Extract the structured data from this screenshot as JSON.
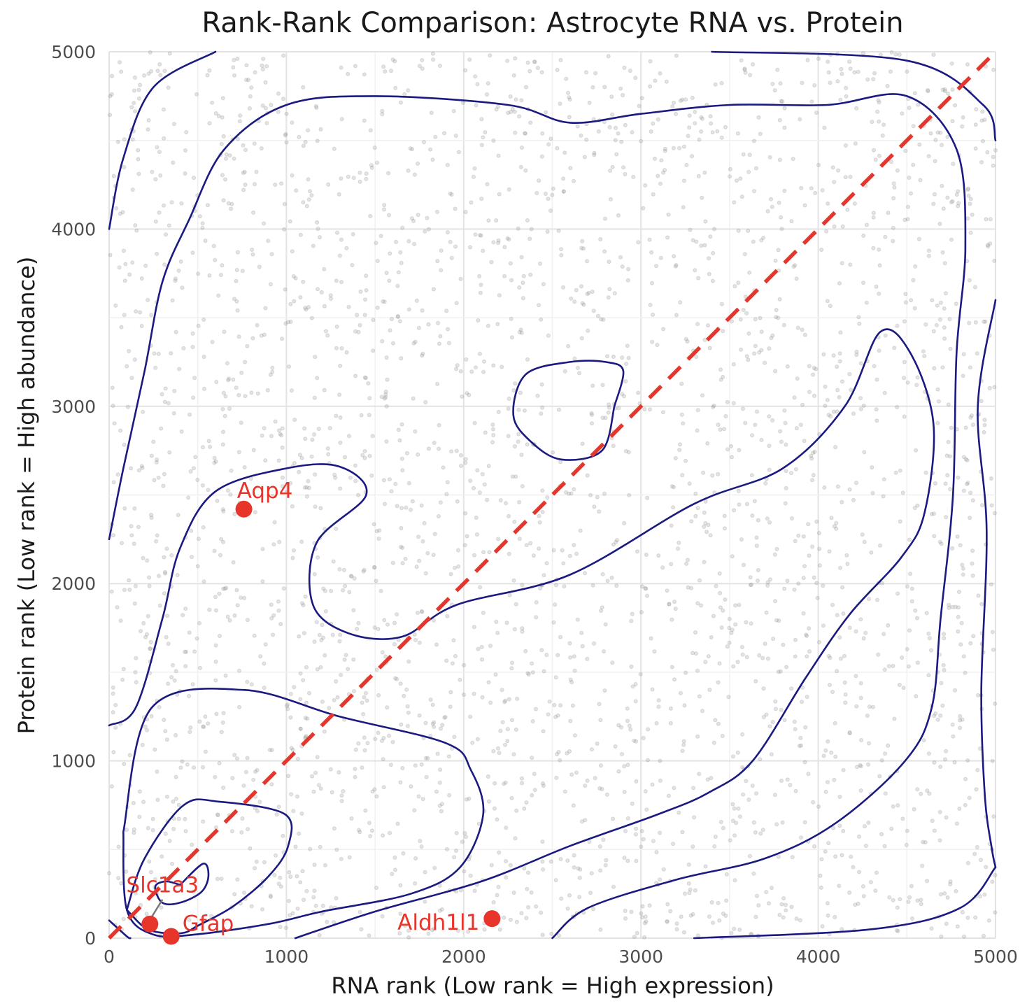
{
  "chart_data": {
    "type": "scatter",
    "title": "Rank-Rank Comparison: Astrocyte RNA vs. Protein",
    "xlabel": "RNA rank (Low rank = High expression)",
    "ylabel": "Protein rank (Low rank = High abundance)",
    "xlim": [
      0,
      5000
    ],
    "ylim": [
      0,
      5000
    ],
    "xticks": [
      0,
      1000,
      2000,
      3000,
      4000,
      5000
    ],
    "yticks": [
      0,
      1000,
      2000,
      3000,
      4000,
      5000
    ],
    "grid": true,
    "legend": "none",
    "background_points": {
      "description": "~3000 semi-transparent grey gene points spread roughly uniformly over the rank plane",
      "color": "#9a9a9a"
    },
    "identity_line": {
      "from": [
        0,
        0
      ],
      "to": [
        5000,
        5000
      ],
      "style": "dashed",
      "color": "#e8352b"
    },
    "highlighted_genes": [
      {
        "label": "Aqp4",
        "x": 760,
        "y": 2420
      },
      {
        "label": "Slc1a3",
        "x": 230,
        "y": 80
      },
      {
        "label": "Gfap",
        "x": 350,
        "y": 10
      },
      {
        "label": "Aldh1l1",
        "x": 2160,
        "y": 110
      }
    ],
    "highlight_color": "#e8352b",
    "contour_color": "#1a1a80",
    "density_contours": [
      {
        "level": 1,
        "points": [
          [
            400,
            300
          ],
          [
            530,
            420
          ],
          [
            560,
            350
          ],
          [
            520,
            260
          ],
          [
            400,
            200
          ],
          [
            300,
            200
          ],
          [
            260,
            290
          ],
          [
            320,
            320
          ],
          [
            400,
            300
          ]
        ]
      },
      {
        "level": 2,
        "points": [
          [
            100,
            160
          ],
          [
            200,
            450
          ],
          [
            420,
            750
          ],
          [
            620,
            770
          ],
          [
            990,
            700
          ],
          [
            1010,
            520
          ],
          [
            900,
            350
          ],
          [
            700,
            180
          ],
          [
            500,
            70
          ],
          [
            420,
            30
          ],
          [
            300,
            30
          ],
          [
            200,
            60
          ],
          [
            100,
            160
          ]
        ]
      },
      {
        "level": 3,
        "points": [
          [
            80,
            600
          ],
          [
            240,
            1300
          ],
          [
            760,
            1400
          ],
          [
            1300,
            1250
          ],
          [
            1900,
            1100
          ],
          [
            2040,
            950
          ],
          [
            2110,
            700
          ],
          [
            1980,
            400
          ],
          [
            1700,
            250
          ],
          [
            1200,
            150
          ],
          [
            900,
            80
          ],
          [
            480,
            20
          ],
          [
            250,
            20
          ],
          [
            100,
            160
          ],
          [
            80,
            600
          ]
        ]
      },
      {
        "level": 4,
        "points": [
          [
            0,
            1200
          ],
          [
            150,
            1300
          ],
          [
            300,
            1800
          ],
          [
            400,
            2200
          ],
          [
            600,
            2520
          ],
          [
            1000,
            2650
          ],
          [
            1300,
            2660
          ],
          [
            1450,
            2500
          ],
          [
            1170,
            2230
          ],
          [
            1150,
            1880
          ],
          [
            1350,
            1720
          ],
          [
            1650,
            1700
          ],
          [
            1960,
            1880
          ],
          [
            2600,
            2050
          ],
          [
            3300,
            2450
          ],
          [
            3800,
            2650
          ],
          [
            4150,
            3000
          ],
          [
            4350,
            3420
          ],
          [
            4520,
            3300
          ],
          [
            4650,
            2900
          ],
          [
            4600,
            2400
          ],
          [
            4470,
            2150
          ],
          [
            4180,
            1830
          ],
          [
            3930,
            1470
          ],
          [
            3630,
            1000
          ],
          [
            3380,
            820
          ],
          [
            3100,
            700
          ],
          [
            2600,
            520
          ],
          [
            2100,
            320
          ],
          [
            1500,
            150
          ],
          [
            1050,
            0
          ]
        ]
      },
      {
        "level": 5,
        "points": [
          [
            0,
            2250
          ],
          [
            80,
            2650
          ],
          [
            200,
            3200
          ],
          [
            300,
            3700
          ],
          [
            450,
            4050
          ],
          [
            650,
            4450
          ],
          [
            1000,
            4700
          ],
          [
            1500,
            4750
          ],
          [
            2250,
            4700
          ],
          [
            2600,
            4600
          ],
          [
            3000,
            4650
          ],
          [
            3500,
            4700
          ],
          [
            4050,
            4700
          ],
          [
            4500,
            4750
          ],
          [
            4780,
            4450
          ],
          [
            4830,
            3900
          ],
          [
            4780,
            3300
          ],
          [
            4760,
            2500
          ],
          [
            4690,
            1800
          ],
          [
            4640,
            1300
          ],
          [
            4490,
            1000
          ],
          [
            4100,
            650
          ],
          [
            3700,
            450
          ],
          [
            3200,
            330
          ],
          [
            2700,
            170
          ],
          [
            2500,
            0
          ]
        ]
      },
      {
        "level": 6,
        "points": [
          [
            2850,
            3000
          ],
          [
            2900,
            3200
          ],
          [
            2800,
            3250
          ],
          [
            2600,
            3250
          ],
          [
            2350,
            3180
          ],
          [
            2280,
            2950
          ],
          [
            2380,
            2800
          ],
          [
            2550,
            2700
          ],
          [
            2780,
            2750
          ],
          [
            2850,
            3000
          ]
        ]
      },
      {
        "level": 7,
        "points": [
          [
            0,
            4000
          ],
          [
            80,
            4400
          ],
          [
            250,
            4800
          ],
          [
            600,
            5000
          ]
        ]
      },
      {
        "level": 7,
        "points": [
          [
            3400,
            5000
          ],
          [
            4500,
            4950
          ],
          [
            4930,
            4700
          ],
          [
            5000,
            4500
          ]
        ]
      },
      {
        "level": 7,
        "points": [
          [
            5000,
            3600
          ],
          [
            4900,
            3000
          ],
          [
            4950,
            2300
          ],
          [
            4920,
            1400
          ],
          [
            4940,
            800
          ],
          [
            4980,
            500
          ],
          [
            5000,
            400
          ]
        ]
      },
      {
        "level": 7,
        "points": [
          [
            5000,
            400
          ],
          [
            4800,
            170
          ],
          [
            4300,
            50
          ],
          [
            3300,
            0
          ]
        ]
      },
      {
        "level": 7,
        "points": [
          [
            0,
            100
          ],
          [
            100,
            10
          ],
          [
            120,
            0
          ]
        ]
      }
    ]
  }
}
